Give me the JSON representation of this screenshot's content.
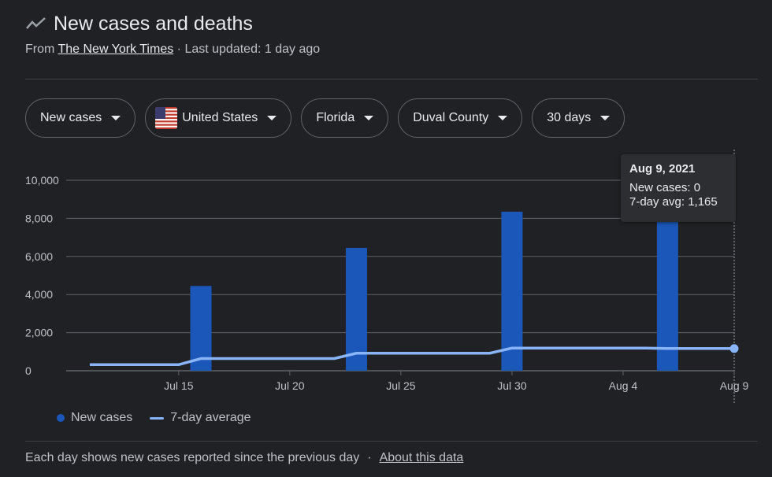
{
  "header": {
    "title": "New cases and deaths",
    "source_prefix": "From",
    "source_name": "The New York Times",
    "updated": "· Last updated: 1 day ago"
  },
  "filters": [
    {
      "label": "New cases"
    },
    {
      "label": "United States"
    },
    {
      "label": "Florida"
    },
    {
      "label": "Duval County"
    },
    {
      "label": "30 days"
    }
  ],
  "icons": {
    "trend": "trending-line-icon",
    "flag": "us-flag-icon",
    "dropdown": "caret-down-icon"
  },
  "colors": {
    "bar": "#1a57b8",
    "avg_line": "#8ab4f8",
    "background": "#202124"
  },
  "legend": {
    "new_cases": "New cases",
    "avg": "7-day average"
  },
  "tooltip": {
    "date": "Aug 9, 2021",
    "new_cases": "New cases: 0",
    "avg": "7-day avg: 1,165"
  },
  "footer": {
    "note": "Each day shows new cases reported since the previous day",
    "link": "About this data"
  },
  "chart_data": {
    "type": "bar",
    "title": "New cases and deaths",
    "ylim": [
      0,
      10000
    ],
    "y_ticks": [
      0,
      2000,
      4000,
      6000,
      8000,
      10000
    ],
    "y_tick_labels": [
      "0",
      "2,000",
      "4,000",
      "6,000",
      "8,000",
      "10,000"
    ],
    "x_tick_labels": [
      "Jul 15",
      "Jul 20",
      "Jul 25",
      "Jul 30",
      "Aug 4",
      "Aug 9"
    ],
    "x": [
      "Jul 11",
      "Jul 12",
      "Jul 13",
      "Jul 14",
      "Jul 15",
      "Jul 16",
      "Jul 17",
      "Jul 18",
      "Jul 19",
      "Jul 20",
      "Jul 21",
      "Jul 22",
      "Jul 23",
      "Jul 24",
      "Jul 25",
      "Jul 26",
      "Jul 27",
      "Jul 28",
      "Jul 29",
      "Jul 30",
      "Jul 31",
      "Aug 1",
      "Aug 2",
      "Aug 3",
      "Aug 4",
      "Aug 5",
      "Aug 6",
      "Aug 7",
      "Aug 8",
      "Aug 9"
    ],
    "series": [
      {
        "name": "New cases",
        "kind": "bar",
        "values": [
          0,
          0,
          0,
          0,
          0,
          4450,
          0,
          0,
          0,
          0,
          0,
          0,
          6450,
          0,
          0,
          0,
          0,
          0,
          0,
          8350,
          0,
          0,
          0,
          0,
          0,
          0,
          8000,
          0,
          0,
          0
        ]
      },
      {
        "name": "7-day average",
        "kind": "line",
        "values": [
          320,
          320,
          320,
          320,
          320,
          640,
          640,
          640,
          640,
          640,
          640,
          640,
          920,
          920,
          920,
          920,
          920,
          920,
          920,
          1190,
          1190,
          1190,
          1190,
          1190,
          1190,
          1190,
          1165,
          1165,
          1165,
          1165
        ]
      }
    ],
    "highlight": {
      "date": "Aug 9, 2021",
      "index": 29
    }
  }
}
